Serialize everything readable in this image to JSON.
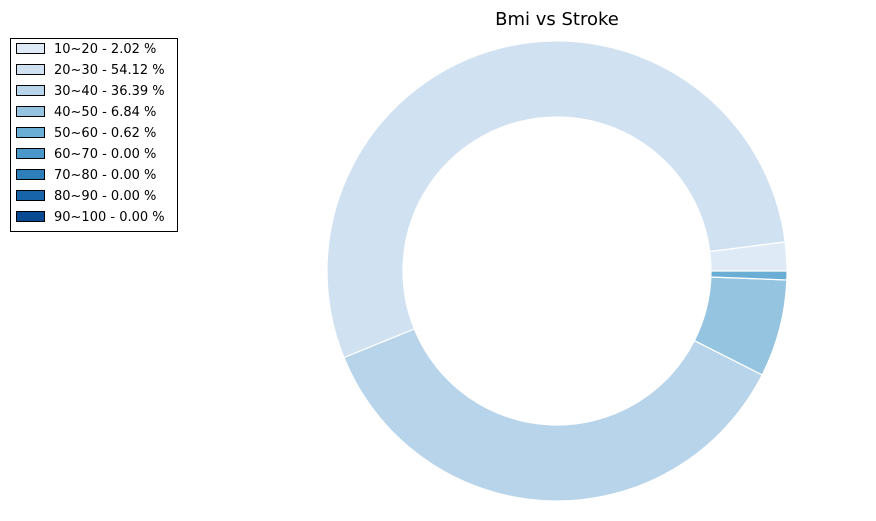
{
  "chart_data": {
    "type": "pie",
    "style": "donut",
    "title": "Bmi vs Stroke",
    "legend_placement": "upper-left",
    "slices": [
      {
        "label": "10~20 - 2.02 %",
        "category": "10~20",
        "percent": 2.02,
        "color": "#deebf7"
      },
      {
        "label": "20~30 - 54.12 %",
        "category": "20~30",
        "percent": 54.12,
        "color": "#d0e1f2"
      },
      {
        "label": "30~40 - 36.39 %",
        "category": "30~40",
        "percent": 36.39,
        "color": "#b7d4ea"
      },
      {
        "label": "40~50 - 6.84 %",
        "category": "40~50",
        "percent": 6.84,
        "color": "#94c4df"
      },
      {
        "label": "50~60 - 0.62 %",
        "category": "50~60",
        "percent": 0.62,
        "color": "#6aaed6"
      },
      {
        "label": "60~70 - 0.00 %",
        "category": "60~70",
        "percent": 0.0,
        "color": "#4a98c9"
      },
      {
        "label": "70~80 - 0.00 %",
        "category": "70~80",
        "percent": 0.0,
        "color": "#2e7ebc"
      },
      {
        "label": "80~90 - 0.00 %",
        "category": "80~90",
        "percent": 0.0,
        "color": "#1764ab"
      },
      {
        "label": "90~100 - 0.00 %",
        "category": "90~100",
        "percent": 0.0,
        "color": "#084a91"
      }
    ]
  }
}
